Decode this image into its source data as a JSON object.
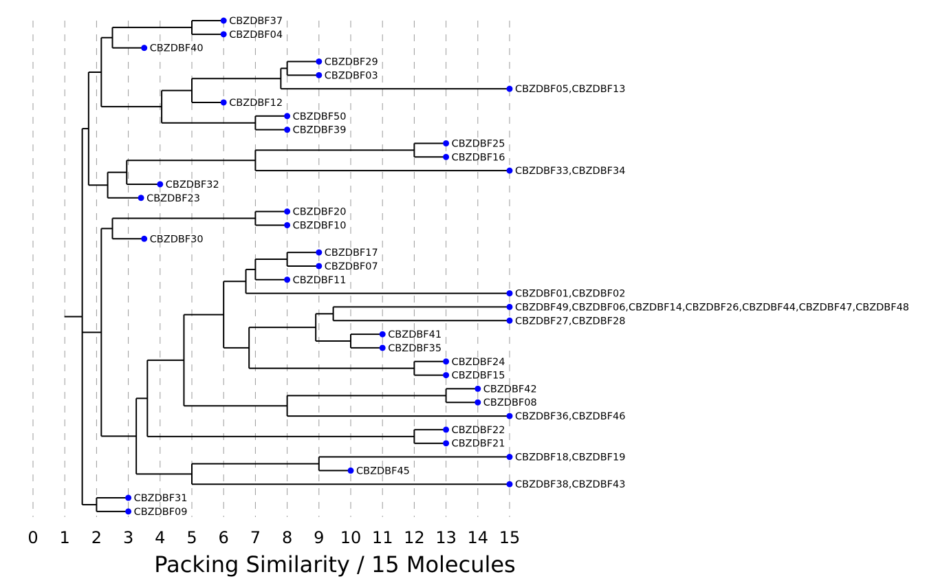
{
  "chart_data": {
    "type": "dendrogram",
    "orientation": "horizontal",
    "xlabel": "Packing Similarity / 15 Molecules",
    "xlim": [
      0,
      15
    ],
    "xticks": [
      0,
      1,
      2,
      3,
      4,
      5,
      6,
      7,
      8,
      9,
      10,
      11,
      12,
      13,
      14,
      15
    ],
    "xtick_labels": [
      "0",
      "1",
      "2",
      "3",
      "4",
      "5",
      "6",
      "7",
      "8",
      "9",
      "10",
      "11",
      "12",
      "13",
      "14",
      "15"
    ],
    "grid": "vertical dashed lines at integer ticks",
    "leaf_color": "#0000ff",
    "branch_color": "#000000",
    "leaves": [
      {
        "label": "CBZDBF37",
        "x": 6
      },
      {
        "label": "CBZDBF04",
        "x": 6
      },
      {
        "label": "CBZDBF40",
        "x": 3.5
      },
      {
        "label": "CBZDBF29",
        "x": 9
      },
      {
        "label": "CBZDBF03",
        "x": 9
      },
      {
        "label": "CBZDBF05,CBZDBF13",
        "x": 15
      },
      {
        "label": "CBZDBF12",
        "x": 6
      },
      {
        "label": "CBZDBF50",
        "x": 8
      },
      {
        "label": "CBZDBF39",
        "x": 8
      },
      {
        "label": "CBZDBF25",
        "x": 13
      },
      {
        "label": "CBZDBF16",
        "x": 13
      },
      {
        "label": "CBZDBF33,CBZDBF34",
        "x": 15
      },
      {
        "label": "CBZDBF32",
        "x": 4
      },
      {
        "label": "CBZDBF23",
        "x": 3.4
      },
      {
        "label": "CBZDBF20",
        "x": 8
      },
      {
        "label": "CBZDBF10",
        "x": 8
      },
      {
        "label": "CBZDBF30",
        "x": 3.5
      },
      {
        "label": "CBZDBF17",
        "x": 9
      },
      {
        "label": "CBZDBF07",
        "x": 9
      },
      {
        "label": "CBZDBF11",
        "x": 8
      },
      {
        "label": "CBZDBF01,CBZDBF02",
        "x": 15
      },
      {
        "label": "CBZDBF49,CBZDBF06,CBZDBF14,CBZDBF26,CBZDBF44,CBZDBF47,CBZDBF48",
        "x": 15
      },
      {
        "label": "CBZDBF27,CBZDBF28",
        "x": 15
      },
      {
        "label": "CBZDBF41",
        "x": 11
      },
      {
        "label": "CBZDBF35",
        "x": 11
      },
      {
        "label": "CBZDBF24",
        "x": 13
      },
      {
        "label": "CBZDBF15",
        "x": 13
      },
      {
        "label": "CBZDBF42",
        "x": 14
      },
      {
        "label": "CBZDBF08",
        "x": 14
      },
      {
        "label": "CBZDBF36,CBZDBF46",
        "x": 15
      },
      {
        "label": "CBZDBF22",
        "x": 13
      },
      {
        "label": "CBZDBF21",
        "x": 13
      },
      {
        "label": "CBZDBF18,CBZDBF19",
        "x": 15
      },
      {
        "label": "CBZDBF45",
        "x": 10
      },
      {
        "label": "CBZDBF38,CBZDBF43",
        "x": 15
      },
      {
        "label": "CBZDBF31",
        "x": 3
      },
      {
        "label": "CBZDBF09",
        "x": 3
      }
    ],
    "tree": {
      "x": 1.55,
      "children": [
        {
          "x": 1.75,
          "children": [
            {
              "x": 2.15,
              "children": [
                {
                  "x": 2.5,
                  "children": [
                    {
                      "x": 5,
                      "children": [
                        {
                          "leaf": 0
                        },
                        {
                          "leaf": 1
                        }
                      ]
                    },
                    {
                      "leaf": 2
                    }
                  ]
                },
                {
                  "x": 4.05,
                  "children": [
                    {
                      "x": 5,
                      "children": [
                        {
                          "x": 7.8,
                          "children": [
                            {
                              "x": 8,
                              "children": [
                                {
                                  "leaf": 3
                                },
                                {
                                  "leaf": 4
                                }
                              ]
                            },
                            {
                              "leaf": 5
                            }
                          ]
                        },
                        {
                          "leaf": 6
                        }
                      ]
                    },
                    {
                      "x": 7,
                      "children": [
                        {
                          "leaf": 7
                        },
                        {
                          "leaf": 8
                        }
                      ]
                    }
                  ]
                }
              ]
            },
            {
              "x": 2.35,
              "children": [
                {
                  "x": 2.95,
                  "children": [
                    {
                      "x": 7,
                      "children": [
                        {
                          "x": 12,
                          "children": [
                            {
                              "leaf": 9
                            },
                            {
                              "leaf": 10
                            }
                          ]
                        },
                        {
                          "leaf": 11
                        }
                      ]
                    },
                    {
                      "leaf": 12
                    }
                  ]
                },
                {
                  "leaf": 13
                }
              ]
            }
          ]
        },
        {
          "x": 2.15,
          "children": [
            {
              "x": 2.5,
              "children": [
                {
                  "x": 7,
                  "children": [
                    {
                      "leaf": 14
                    },
                    {
                      "leaf": 15
                    }
                  ]
                },
                {
                  "leaf": 16
                }
              ]
            },
            {
              "x": 3.25,
              "children": [
                {
                  "x": 3.6,
                  "children": [
                    {
                      "x": 4.75,
                      "children": [
                        {
                          "x": 6,
                          "children": [
                            {
                              "x": 6.7,
                              "children": [
                                {
                                  "x": 7,
                                  "children": [
                                    {
                                      "x": 8,
                                      "children": [
                                        {
                                          "leaf": 17
                                        },
                                        {
                                          "leaf": 18
                                        }
                                      ]
                                    },
                                    {
                                      "leaf": 19
                                    }
                                  ]
                                },
                                {
                                  "leaf": 20
                                }
                              ]
                            },
                            {
                              "x": 6.8,
                              "children": [
                                {
                                  "x": 8.9,
                                  "children": [
                                    {
                                      "x": 9.45,
                                      "children": [
                                        {
                                          "leaf": 21
                                        },
                                        {
                                          "leaf": 22
                                        }
                                      ]
                                    },
                                    {
                                      "x": 10,
                                      "children": [
                                        {
                                          "leaf": 23
                                        },
                                        {
                                          "leaf": 24
                                        }
                                      ]
                                    }
                                  ]
                                },
                                {
                                  "x": 12,
                                  "children": [
                                    {
                                      "leaf": 25
                                    },
                                    {
                                      "leaf": 26
                                    }
                                  ]
                                }
                              ]
                            }
                          ]
                        },
                        {
                          "x": 8,
                          "children": [
                            {
                              "x": 13,
                              "children": [
                                {
                                  "leaf": 27
                                },
                                {
                                  "leaf": 28
                                }
                              ]
                            },
                            {
                              "leaf": 29
                            }
                          ]
                        }
                      ]
                    },
                    {
                      "x": 12,
                      "children": [
                        {
                          "leaf": 30
                        },
                        {
                          "leaf": 31
                        }
                      ]
                    }
                  ]
                },
                {
                  "x": 5,
                  "children": [
                    {
                      "x": 9,
                      "children": [
                        {
                          "leaf": 32
                        },
                        {
                          "leaf": 33
                        }
                      ]
                    },
                    {
                      "leaf": 34
                    }
                  ]
                }
              ]
            }
          ]
        },
        {
          "x": 2,
          "children": [
            {
              "leaf": 35
            },
            {
              "leaf": 36
            }
          ]
        }
      ]
    }
  }
}
